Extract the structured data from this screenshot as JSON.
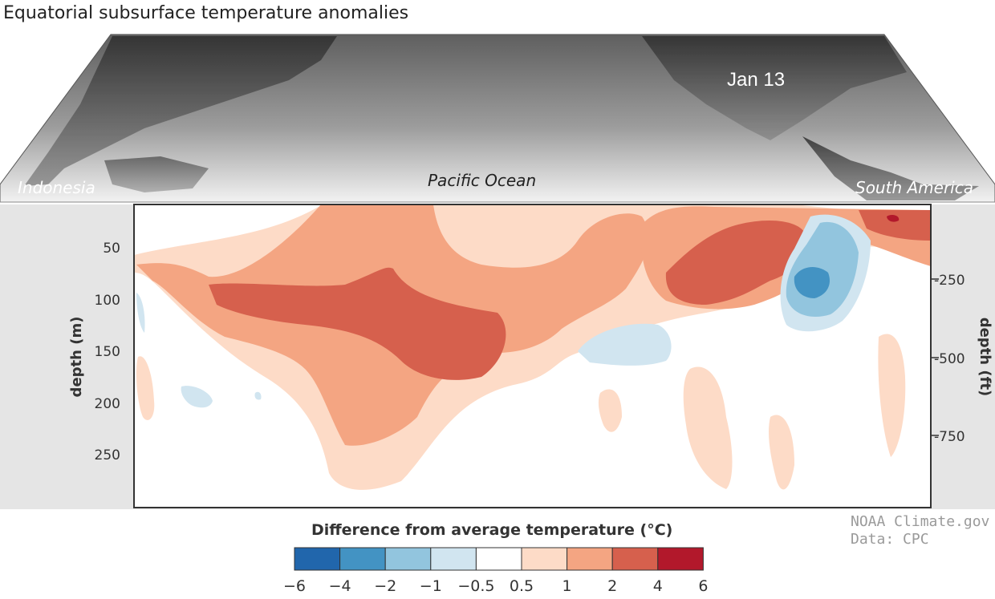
{
  "title": "Equatorial subsurface temperature anomalies",
  "date": "Jan 13",
  "map_labels": {
    "west": "Indonesia",
    "center": "Pacific Ocean",
    "east": "South America"
  },
  "left_axis": {
    "label": "depth (m)",
    "ticks": [
      "50",
      "100",
      "150",
      "200",
      "250"
    ]
  },
  "right_axis": {
    "label": "depth (ft)",
    "ticks": [
      "-250",
      "-500",
      "-750"
    ]
  },
  "legend": {
    "title": "Difference from average temperature (°C)",
    "colors": [
      "#2166ac",
      "#4393c3",
      "#92c5de",
      "#d1e5f0",
      "#ffffff",
      "#fddbc7",
      "#f4a582",
      "#d6604d",
      "#b2182b"
    ],
    "tick_labels": [
      "−6",
      "−4",
      "−2",
      "−1",
      "−0.5",
      "0.5",
      "1",
      "2",
      "4",
      "6"
    ]
  },
  "credit": {
    "line1": "NOAA Climate.gov",
    "line2": "Data: CPC"
  },
  "chart_data": {
    "type": "heatmap",
    "title": "Equatorial subsurface temperature anomalies",
    "ylabel": "depth (m)",
    "ylabel_right": "depth (ft)",
    "ylim": [
      0,
      300
    ],
    "y_ticks": [
      50,
      100,
      150,
      200,
      250
    ],
    "y_ticks_right": [
      -250,
      -500,
      -750
    ],
    "color_bins": [
      -6,
      -4,
      -2,
      -1,
      -0.5,
      0.5,
      1,
      2,
      4,
      6
    ],
    "date": "Jan 13"
  }
}
